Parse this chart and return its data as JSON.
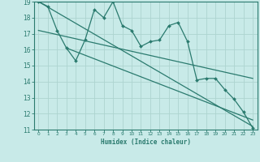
{
  "xlabel": "Humidex (Indice chaleur)",
  "bg_color": "#c8eae8",
  "grid_color": "#add4d0",
  "line_color": "#2a7a6e",
  "xlim": [
    -0.5,
    23.5
  ],
  "ylim": [
    11,
    19
  ],
  "xticks": [
    0,
    1,
    2,
    3,
    4,
    5,
    6,
    7,
    8,
    9,
    10,
    11,
    12,
    13,
    14,
    15,
    16,
    17,
    18,
    19,
    20,
    21,
    22,
    23
  ],
  "yticks": [
    11,
    12,
    13,
    14,
    15,
    16,
    17,
    18,
    19
  ],
  "zigzag_x": [
    0,
    1,
    2,
    3,
    4,
    5,
    6,
    7,
    8,
    9,
    10,
    11,
    12,
    13,
    14,
    15,
    16,
    17,
    18,
    19,
    20,
    21,
    22,
    23
  ],
  "zigzag_y": [
    19.0,
    18.7,
    17.2,
    16.1,
    15.3,
    16.6,
    18.5,
    18.0,
    19.0,
    17.5,
    17.2,
    16.2,
    16.5,
    16.6,
    17.5,
    17.7,
    16.5,
    14.1,
    14.2,
    14.2,
    13.5,
    12.9,
    12.1,
    11.1
  ],
  "line1_x": [
    0,
    23
  ],
  "line1_y": [
    19.0,
    11.2
  ],
  "line2_x": [
    0,
    23
  ],
  "line2_y": [
    17.2,
    14.2
  ],
  "line3_x": [
    3,
    23
  ],
  "line3_y": [
    16.1,
    11.6
  ]
}
